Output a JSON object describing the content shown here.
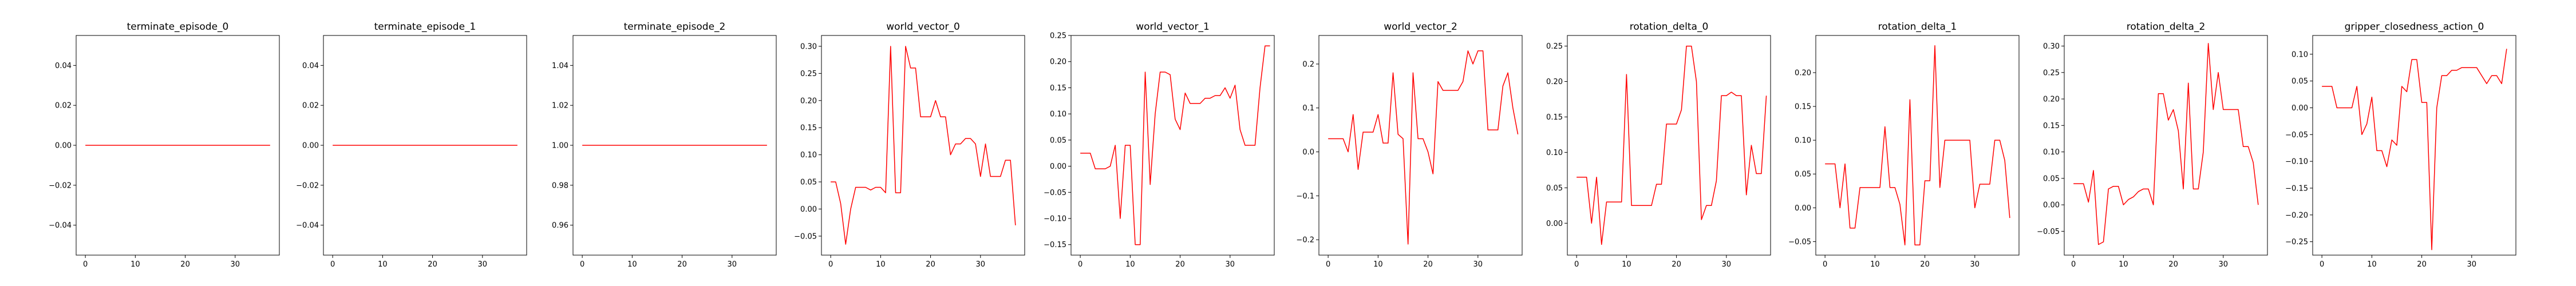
{
  "chart_data": [
    {
      "type": "line",
      "title": "terminate_episode_0",
      "xlim": [
        -1.85,
        38.85
      ],
      "ylim": [
        -0.055,
        0.055
      ],
      "xticks": [
        0,
        10,
        20,
        30
      ],
      "xtick_labels": [
        "0",
        "10",
        "20",
        "30"
      ],
      "yticks": [
        -0.04,
        -0.02,
        0.0,
        0.02,
        0.04
      ],
      "ytick_labels": [
        "−0.04",
        "−0.02",
        "0.00",
        "0.02",
        "0.04"
      ],
      "color": "#ff0000",
      "y": [
        0,
        0,
        0,
        0,
        0,
        0,
        0,
        0,
        0,
        0,
        0,
        0,
        0,
        0,
        0,
        0,
        0,
        0,
        0,
        0,
        0,
        0,
        0,
        0,
        0,
        0,
        0,
        0,
        0,
        0,
        0,
        0,
        0,
        0,
        0,
        0,
        0,
        0
      ]
    },
    {
      "type": "line",
      "title": "terminate_episode_1",
      "xlim": [
        -1.85,
        38.85
      ],
      "ylim": [
        -0.055,
        0.055
      ],
      "xticks": [
        0,
        10,
        20,
        30
      ],
      "xtick_labels": [
        "0",
        "10",
        "20",
        "30"
      ],
      "yticks": [
        -0.04,
        -0.02,
        0.0,
        0.02,
        0.04
      ],
      "ytick_labels": [
        "−0.04",
        "−0.02",
        "0.00",
        "0.02",
        "0.04"
      ],
      "color": "#ff0000",
      "y": [
        0,
        0,
        0,
        0,
        0,
        0,
        0,
        0,
        0,
        0,
        0,
        0,
        0,
        0,
        0,
        0,
        0,
        0,
        0,
        0,
        0,
        0,
        0,
        0,
        0,
        0,
        0,
        0,
        0,
        0,
        0,
        0,
        0,
        0,
        0,
        0,
        0,
        0
      ]
    },
    {
      "type": "line",
      "title": "terminate_episode_2",
      "xlim": [
        -1.85,
        38.85
      ],
      "ylim": [
        0.945,
        1.055
      ],
      "xticks": [
        0,
        10,
        20,
        30
      ],
      "xtick_labels": [
        "0",
        "10",
        "20",
        "30"
      ],
      "yticks": [
        0.96,
        0.98,
        1.0,
        1.02,
        1.04
      ],
      "ytick_labels": [
        "0.96",
        "0.98",
        "1.00",
        "1.02",
        "1.04"
      ],
      "color": "#ff0000",
      "y": [
        1,
        1,
        1,
        1,
        1,
        1,
        1,
        1,
        1,
        1,
        1,
        1,
        1,
        1,
        1,
        1,
        1,
        1,
        1,
        1,
        1,
        1,
        1,
        1,
        1,
        1,
        1,
        1,
        1,
        1,
        1,
        1,
        1,
        1,
        1,
        1,
        1,
        1
      ]
    },
    {
      "type": "line",
      "title": "world_vector_0",
      "xlim": [
        -1.85,
        38.85
      ],
      "ylim": [
        -0.085,
        0.32
      ],
      "xticks": [
        0,
        10,
        20,
        30
      ],
      "xtick_labels": [
        "0",
        "10",
        "20",
        "30"
      ],
      "yticks": [
        -0.05,
        0.0,
        0.05,
        0.1,
        0.15,
        0.2,
        0.25,
        0.3
      ],
      "ytick_labels": [
        "−0.05",
        "0.00",
        "0.05",
        "0.10",
        "0.15",
        "0.20",
        "0.25",
        "0.30"
      ],
      "color": "#ff0000",
      "y": [
        0.05,
        0.05,
        0.01,
        -0.065,
        0.0,
        0.04,
        0.04,
        0.04,
        0.035,
        0.04,
        0.04,
        0.03,
        0.3,
        0.03,
        0.03,
        0.3,
        0.26,
        0.26,
        0.17,
        0.17,
        0.17,
        0.2,
        0.17,
        0.17,
        0.1,
        0.12,
        0.12,
        0.13,
        0.13,
        0.12,
        0.06,
        0.12,
        0.06,
        0.06,
        0.06,
        0.09,
        0.09,
        -0.03
      ]
    },
    {
      "type": "line",
      "title": "world_vector_1",
      "xlim": [
        -1.85,
        38.85
      ],
      "ylim": [
        -0.17,
        0.25
      ],
      "xticks": [
        0,
        10,
        20,
        30
      ],
      "xtick_labels": [
        "0",
        "10",
        "20",
        "30"
      ],
      "yticks": [
        -0.15,
        -0.1,
        -0.05,
        0.0,
        0.05,
        0.1,
        0.15,
        0.2,
        0.25
      ],
      "ytick_labels": [
        "−0.15",
        "−0.10",
        "−0.05",
        "0.00",
        "0.05",
        "0.10",
        "0.15",
        "0.20",
        "0.25"
      ],
      "color": "#ff0000",
      "y": [
        0.025,
        0.025,
        0.025,
        -0.005,
        -0.005,
        -0.005,
        0.0,
        0.04,
        -0.1,
        0.04,
        0.04,
        -0.15,
        -0.15,
        0.18,
        -0.035,
        0.1,
        0.18,
        0.18,
        0.175,
        0.09,
        0.07,
        0.14,
        0.12,
        0.12,
        0.12,
        0.13,
        0.13,
        0.135,
        0.135,
        0.15,
        0.13,
        0.155,
        0.07,
        0.04,
        0.04,
        0.04,
        0.15,
        0.23,
        0.23
      ]
    },
    {
      "type": "line",
      "title": "world_vector_2",
      "xlim": [
        -1.85,
        38.85
      ],
      "ylim": [
        -0.235,
        0.265
      ],
      "xticks": [
        0,
        10,
        20,
        30
      ],
      "xtick_labels": [
        "0",
        "10",
        "20",
        "30"
      ],
      "yticks": [
        -0.2,
        -0.1,
        0.0,
        0.1,
        0.2
      ],
      "ytick_labels": [
        "−0.2",
        "−0.1",
        "0.0",
        "0.1",
        "0.2"
      ],
      "color": "#ff0000",
      "y": [
        0.03,
        0.03,
        0.03,
        0.03,
        0.0,
        0.085,
        -0.04,
        0.045,
        0.045,
        0.045,
        0.085,
        0.02,
        0.02,
        0.18,
        0.04,
        0.03,
        -0.21,
        0.18,
        0.03,
        0.03,
        0.0,
        -0.05,
        0.16,
        0.14,
        0.14,
        0.14,
        0.14,
        0.16,
        0.23,
        0.2,
        0.23,
        0.23,
        0.05,
        0.05,
        0.05,
        0.15,
        0.18,
        0.1,
        0.04
      ]
    },
    {
      "type": "line",
      "title": "rotation_delta_0",
      "xlim": [
        -1.85,
        38.85
      ],
      "ylim": [
        -0.045,
        0.265
      ],
      "xticks": [
        0,
        10,
        20,
        30
      ],
      "xtick_labels": [
        "0",
        "10",
        "20",
        "30"
      ],
      "yticks": [
        0.0,
        0.05,
        0.1,
        0.15,
        0.2,
        0.25
      ],
      "ytick_labels": [
        "0.00",
        "0.05",
        "0.10",
        "0.15",
        "0.20",
        "0.25"
      ],
      "color": "#ff0000",
      "y": [
        0.065,
        0.065,
        0.065,
        0.0,
        0.065,
        -0.03,
        0.03,
        0.03,
        0.03,
        0.03,
        0.21,
        0.025,
        0.025,
        0.025,
        0.025,
        0.025,
        0.055,
        0.055,
        0.14,
        0.14,
        0.14,
        0.16,
        0.25,
        0.25,
        0.2,
        0.005,
        0.025,
        0.025,
        0.06,
        0.18,
        0.18,
        0.185,
        0.18,
        0.18,
        0.04,
        0.11,
        0.07,
        0.07,
        0.18
      ]
    },
    {
      "type": "line",
      "title": "rotation_delta_1",
      "xlim": [
        -1.85,
        38.85
      ],
      "ylim": [
        -0.07,
        0.255
      ],
      "xticks": [
        0,
        10,
        20,
        30
      ],
      "xtick_labels": [
        "0",
        "10",
        "20",
        "30"
      ],
      "yticks": [
        -0.05,
        0.0,
        0.05,
        0.1,
        0.15,
        0.2
      ],
      "ytick_labels": [
        "−0.05",
        "0.00",
        "0.05",
        "0.10",
        "0.15",
        "0.20"
      ],
      "color": "#ff0000",
      "y": [
        0.065,
        0.065,
        0.065,
        0.0,
        0.065,
        -0.03,
        -0.03,
        0.03,
        0.03,
        0.03,
        0.03,
        0.03,
        0.12,
        0.03,
        0.03,
        0.005,
        -0.055,
        0.16,
        -0.055,
        -0.055,
        0.04,
        0.04,
        0.24,
        0.03,
        0.1,
        0.1,
        0.1,
        0.1,
        0.1,
        0.1,
        0.0,
        0.035,
        0.035,
        0.035,
        0.1,
        0.1,
        0.07,
        -0.015
      ]
    },
    {
      "type": "line",
      "title": "rotation_delta_2",
      "xlim": [
        -1.85,
        38.85
      ],
      "ylim": [
        -0.095,
        0.32
      ],
      "xticks": [
        0,
        10,
        20,
        30
      ],
      "xtick_labels": [
        "0",
        "10",
        "20",
        "30"
      ],
      "yticks": [
        -0.05,
        0.0,
        0.05,
        0.1,
        0.15,
        0.2,
        0.25,
        0.3
      ],
      "ytick_labels": [
        "−0.05",
        "0.00",
        "0.05",
        "0.10",
        "0.15",
        "0.20",
        "0.25",
        "0.30"
      ],
      "color": "#ff0000",
      "y": [
        0.04,
        0.04,
        0.04,
        0.005,
        0.065,
        -0.075,
        -0.07,
        0.03,
        0.035,
        0.035,
        0.0,
        0.01,
        0.015,
        0.025,
        0.03,
        0.03,
        0.0,
        0.21,
        0.21,
        0.16,
        0.18,
        0.14,
        0.03,
        0.23,
        0.03,
        0.03,
        0.1,
        0.305,
        0.18,
        0.25,
        0.18,
        0.18,
        0.18,
        0.18,
        0.11,
        0.11,
        0.08,
        0.0
      ]
    },
    {
      "type": "line",
      "title": "gripper_closedness_action_0",
      "xlim": [
        -1.85,
        38.85
      ],
      "ylim": [
        -0.275,
        0.135
      ],
      "xticks": [
        0,
        10,
        20,
        30
      ],
      "xtick_labels": [
        "0",
        "10",
        "20",
        "30"
      ],
      "yticks": [
        -0.25,
        -0.2,
        -0.15,
        -0.1,
        -0.05,
        0.0,
        0.05,
        0.1
      ],
      "ytick_labels": [
        "−0.25",
        "−0.20",
        "−0.15",
        "−0.10",
        "−0.05",
        "0.00",
        "0.05",
        "0.10"
      ],
      "color": "#ff0000",
      "y": [
        0.04,
        0.04,
        0.04,
        0.0,
        0.0,
        0.0,
        0.0,
        0.04,
        -0.05,
        -0.03,
        0.02,
        -0.08,
        -0.08,
        -0.11,
        -0.06,
        -0.07,
        0.04,
        0.03,
        0.09,
        0.09,
        0.01,
        0.01,
        -0.265,
        0.0,
        0.06,
        0.06,
        0.07,
        0.07,
        0.075,
        0.075,
        0.075,
        0.075,
        0.06,
        0.045,
        0.06,
        0.06,
        0.045,
        0.11
      ]
    }
  ]
}
